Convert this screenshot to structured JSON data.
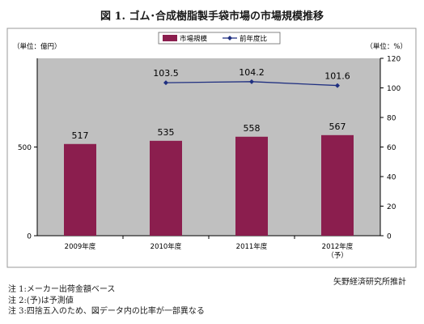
{
  "title": "図 1. ゴム･合成樹脂製手袋市場の市場規模推移",
  "source": "矢野経済研究所推計",
  "notes": [
    "注 1:メーカー出荷金額ベース",
    "注 2:(予)は予測値",
    "注 3:四捨五入のため、図データ内の比率が一部異なる"
  ],
  "colors": {
    "bar": "#8b1e4e",
    "line": "#1f2f80",
    "plot_bg": "#c0c0c0"
  },
  "chart_data": {
    "type": "bar",
    "categories": [
      "2009年度",
      "2010年度",
      "2011年度",
      "2012年度\n（予）"
    ],
    "series": [
      {
        "name": "市場規模",
        "type": "bar",
        "axis": "left",
        "values": [
          517,
          535,
          558,
          567
        ],
        "labels": [
          "517",
          "535",
          "558",
          "567"
        ]
      },
      {
        "name": "前年度比",
        "type": "line",
        "axis": "right",
        "values": [
          null,
          103.5,
          104.2,
          101.6
        ],
        "labels": [
          "",
          "103.5",
          "104.2",
          "101.6"
        ]
      }
    ],
    "ylabel_left": "（単位：億円）",
    "ylabel_right": "（単位：%）",
    "ylim_left": [
      0,
      1000
    ],
    "yticks_left": [
      0,
      500
    ],
    "ylim_right": [
      0,
      120
    ],
    "yticks_right": [
      0,
      20,
      40,
      60,
      80,
      100,
      120
    ],
    "legend_position": "top-center",
    "grid": false
  }
}
